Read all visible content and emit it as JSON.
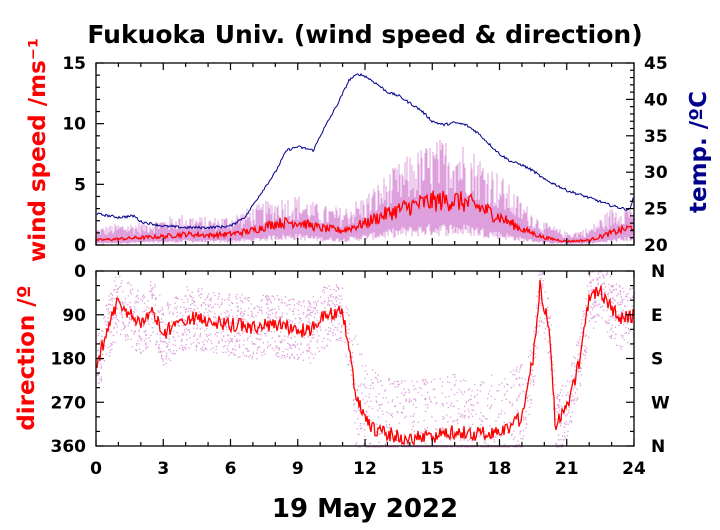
{
  "title": "Fukuoka Univ. (wind speed & direction)",
  "date_label": "19 May 2022",
  "colors": {
    "wind": "#ff0000",
    "gust": "#dda0dd",
    "temp": "#00008b",
    "axis": "#000000"
  },
  "chart_data": [
    {
      "type": "line",
      "panel": "wind speed and temperature",
      "xlabel": "",
      "x_ticks": [
        "0",
        "3",
        "6",
        "9",
        "12",
        "15",
        "18",
        "21",
        "24"
      ],
      "xlim": [
        0,
        24
      ],
      "ylabel": "wind speed /ms⁻¹",
      "ylim": [
        0,
        15
      ],
      "y_ticks": [
        "0",
        "5",
        "10",
        "15"
      ],
      "y2label": "temp. /ºC",
      "y2lim": [
        20,
        45
      ],
      "y2_ticks": [
        "20",
        "25",
        "30",
        "35",
        "40",
        "45"
      ],
      "series": [
        {
          "role": "wind_speed_mean",
          "color": "#ff0000",
          "x": [
            0,
            1,
            2,
            3,
            4,
            5,
            6,
            7,
            8,
            9,
            10,
            11,
            12,
            13,
            14,
            15,
            16,
            17,
            18,
            19,
            20,
            21,
            22,
            23,
            24
          ],
          "y": [
            0.4,
            0.5,
            0.6,
            0.7,
            0.9,
            0.8,
            0.9,
            1.2,
            1.8,
            1.9,
            1.4,
            1.2,
            1.8,
            2.6,
            3.2,
            3.6,
            3.7,
            3.2,
            2.3,
            1.3,
            0.6,
            0.3,
            0.4,
            1.0,
            1.5
          ]
        },
        {
          "role": "wind_speed_max",
          "color": "#dda0dd",
          "x": [
            0,
            1,
            2,
            3,
            4,
            5,
            6,
            7,
            8,
            9,
            10,
            11,
            12,
            13,
            14,
            15,
            16,
            17,
            18,
            19,
            20,
            21,
            22,
            23,
            24
          ],
          "y": [
            1.2,
            1.5,
            1.6,
            1.9,
            2.2,
            1.9,
            2.1,
            2.7,
            3.3,
            3.5,
            2.8,
            2.6,
            3.5,
            5.0,
            6.3,
            7.2,
            7.6,
            6.5,
            5.0,
            3.1,
            1.6,
            0.9,
            1.2,
            2.6,
            3.2
          ]
        },
        {
          "role": "temperature",
          "color": "#00008b",
          "x": [
            0,
            1,
            1.7,
            2,
            3,
            4,
            5,
            6,
            6.7,
            7,
            8,
            8.5,
            9,
            9.7,
            10,
            10.8,
            11.3,
            11.7,
            12,
            12.5,
            13,
            13.5,
            14,
            14.5,
            15,
            15.5,
            16,
            16.5,
            17,
            17.5,
            18,
            18.5,
            19,
            19.5,
            20,
            20.5,
            21,
            22,
            23,
            23.8,
            24
          ],
          "y": [
            24.3,
            23.8,
            24.0,
            23.2,
            22.6,
            22.4,
            22.4,
            22.6,
            24.0,
            25.5,
            30.0,
            33.0,
            33.5,
            33.0,
            35.0,
            39.5,
            42.7,
            43.5,
            43.2,
            42.2,
            41.0,
            40.5,
            39.5,
            38.5,
            37.0,
            36.5,
            36.8,
            36.5,
            35.5,
            34.0,
            32.5,
            31.5,
            31.0,
            30.2,
            29.0,
            28.3,
            27.5,
            26.5,
            25.4,
            24.8,
            26.8
          ]
        }
      ]
    },
    {
      "type": "scatter",
      "panel": "wind direction",
      "xlabel": "19 May 2022",
      "x_ticks": [
        "0",
        "3",
        "6",
        "9",
        "12",
        "15",
        "18",
        "21",
        "24"
      ],
      "xlim": [
        0,
        24
      ],
      "ylabel": "direction /º",
      "ylim": [
        0,
        360
      ],
      "y_ticks": [
        "0",
        "90",
        "180",
        "270",
        "360"
      ],
      "y2_ticks": [
        "N",
        "E",
        "S",
        "W",
        "N"
      ],
      "series": [
        {
          "role": "direction_mean",
          "color": "#ff0000",
          "x": [
            0,
            0.5,
            1,
            1.5,
            2,
            2.5,
            3,
            3.5,
            4,
            5,
            6,
            7,
            8,
            9,
            9.5,
            10,
            10.5,
            11,
            11.3,
            11.6,
            12,
            12.5,
            13,
            14,
            15,
            16,
            17,
            18,
            18.5,
            19,
            19.5,
            19.8,
            20.2,
            20.5,
            21,
            21.5,
            22,
            22.5,
            23,
            23.5,
            24
          ],
          "y": [
            200,
            120,
            60,
            90,
            110,
            80,
            130,
            110,
            95,
            100,
            110,
            115,
            110,
            120,
            125,
            100,
            85,
            80,
            160,
            260,
            300,
            330,
            335,
            345,
            340,
            330,
            335,
            330,
            320,
            300,
            180,
            30,
            120,
            320,
            280,
            200,
            60,
            40,
            80,
            100,
            90
          ]
        },
        {
          "role": "direction_samples",
          "color": "#dda0dd",
          "x": [
            0,
            1,
            2,
            3,
            4,
            5,
            6,
            7,
            8,
            9,
            10,
            11,
            12,
            13,
            14,
            15,
            16,
            17,
            18,
            19,
            20,
            21,
            22,
            23,
            24
          ],
          "y": [
            140,
            80,
            100,
            100,
            90,
            100,
            110,
            110,
            105,
            110,
            90,
            80,
            240,
            220,
            300,
            280,
            270,
            290,
            300,
            230,
            120,
            260,
            70,
            90,
            95
          ]
        }
      ]
    }
  ]
}
